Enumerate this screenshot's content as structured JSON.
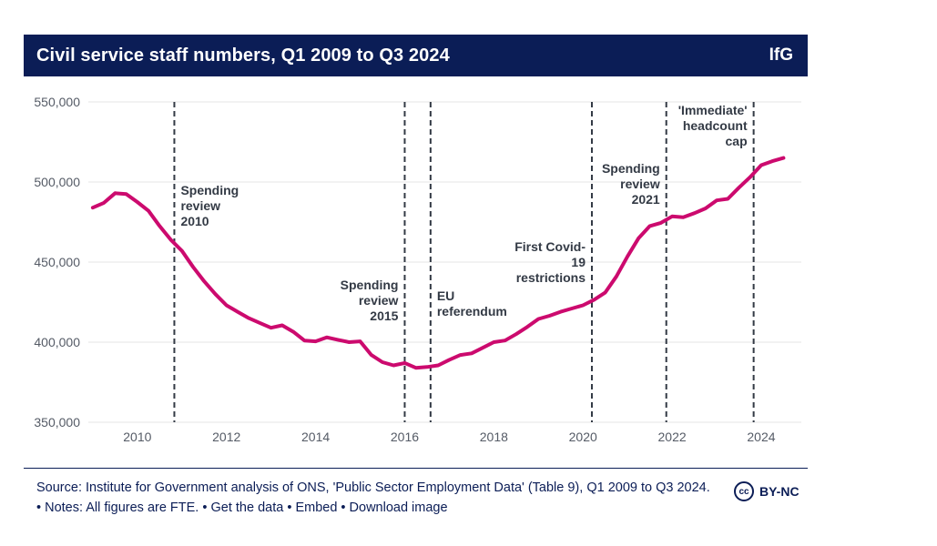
{
  "header": {
    "title": "Civil service staff numbers, Q1 2009 to Q3 2024",
    "brand": "IfG"
  },
  "footer": {
    "source_text": "Source: Institute for Government analysis of ONS, 'Public Sector Employment Data' (Table 9), Q1 2009 to Q3 2024.",
    "notes": "Notes: All figures are FTE.",
    "link_get_data": "Get the data",
    "link_embed": "Embed",
    "link_download": "Download image",
    "license_icon": "cc",
    "license_label": "BY-NC"
  },
  "colors": {
    "header_bg": "#0b1d56",
    "line": "#cc0a6e",
    "grid": "#e4e4e4",
    "event_line": "#333a45"
  },
  "chart_data": {
    "type": "line",
    "title": "Civil service staff numbers, Q1 2009 to Q3 2024",
    "xlabel": "",
    "ylabel": "",
    "xlim": [
      2008.9,
      2024.9
    ],
    "ylim": [
      350000,
      550000
    ],
    "x_ticks": [
      2010,
      2012,
      2014,
      2016,
      2018,
      2020,
      2022,
      2024
    ],
    "x_tick_labels": [
      "2010",
      "2012",
      "2014",
      "2016",
      "2018",
      "2020",
      "2022",
      "2024"
    ],
    "y_ticks": [
      350000,
      400000,
      450000,
      500000,
      550000
    ],
    "y_tick_labels": [
      "350,000",
      "400,000",
      "450,000",
      "500,000",
      "550,000"
    ],
    "grid": true,
    "series": [
      {
        "name": "",
        "x": [
          2009.0,
          2009.25,
          2009.5,
          2009.75,
          2010.0,
          2010.25,
          2010.5,
          2010.75,
          2011.0,
          2011.25,
          2011.5,
          2011.75,
          2012.0,
          2012.25,
          2012.5,
          2012.75,
          2013.0,
          2013.25,
          2013.5,
          2013.75,
          2014.0,
          2014.25,
          2014.5,
          2014.75,
          2015.0,
          2015.25,
          2015.5,
          2015.75,
          2016.0,
          2016.25,
          2016.5,
          2016.75,
          2017.0,
          2017.25,
          2017.5,
          2017.75,
          2018.0,
          2018.25,
          2018.5,
          2018.75,
          2019.0,
          2019.25,
          2019.5,
          2019.75,
          2020.0,
          2020.25,
          2020.5,
          2020.75,
          2021.0,
          2021.25,
          2021.5,
          2021.75,
          2022.0,
          2022.25,
          2022.5,
          2022.75,
          2023.0,
          2023.25,
          2023.5,
          2023.75,
          2024.0,
          2024.25,
          2024.5
        ],
        "values": [
          484000,
          487000,
          493000,
          492500,
          487500,
          482000,
          472500,
          464000,
          457000,
          447000,
          438000,
          430000,
          423000,
          419000,
          415000,
          412000,
          409000,
          410500,
          406500,
          401000,
          400500,
          403000,
          401500,
          400000,
          400500,
          392000,
          387500,
          385500,
          387000,
          384000,
          384500,
          385500,
          389000,
          392000,
          393000,
          396500,
          400000,
          401000,
          405000,
          409500,
          414500,
          416500,
          419000,
          421000,
          423000,
          426500,
          431000,
          441000,
          453500,
          465000,
          472500,
          474500,
          478500,
          478000,
          480500,
          483500,
          488500,
          489500,
          496500,
          503000,
          510500,
          513000,
          515000
        ]
      }
    ],
    "events": [
      {
        "x": 2010.83,
        "label": [
          "Spending",
          "review",
          "2010"
        ],
        "align": "left"
      },
      {
        "x": 2016.0,
        "label": [
          "Spending",
          "review",
          "2015"
        ],
        "align": "right"
      },
      {
        "x": 2016.58,
        "label": [
          "EU",
          "referendum"
        ],
        "align": "left"
      },
      {
        "x": 2020.2,
        "label": [
          "First Covid-",
          "19",
          "restrictions"
        ],
        "align": "right"
      },
      {
        "x": 2021.87,
        "label": [
          "Spending",
          "review",
          "2021"
        ],
        "align": "right"
      },
      {
        "x": 2023.83,
        "label": [
          "'Immediate'",
          "headcount",
          "cap"
        ],
        "align": "right"
      }
    ]
  }
}
